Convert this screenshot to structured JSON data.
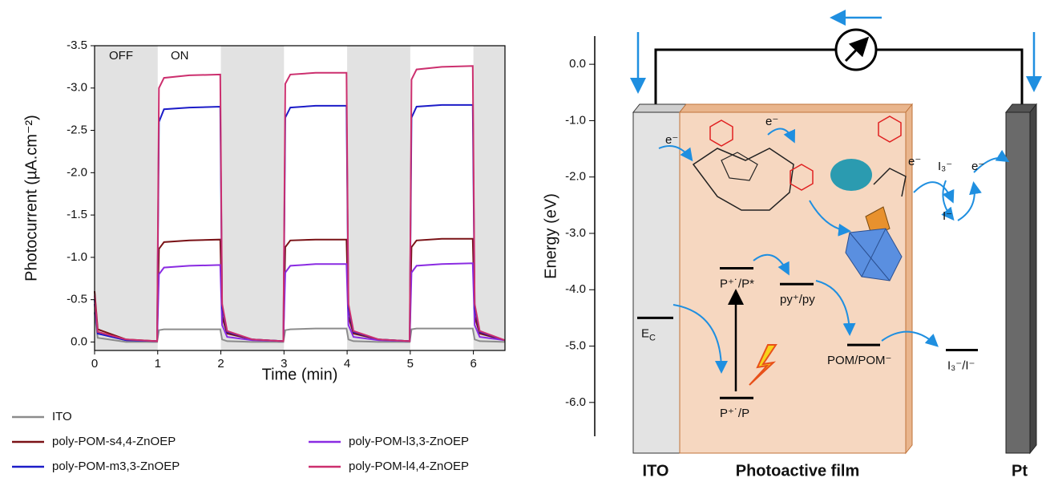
{
  "chart_data": [
    {
      "type": "line",
      "x_label": "Time (min)",
      "y_label": "Photocurrent (µA.cm⁻²)",
      "annotations": [
        "OFF",
        "ON"
      ],
      "shaded": [
        [
          0,
          1
        ],
        [
          2,
          3
        ],
        [
          4,
          5
        ],
        [
          6,
          6.5
        ]
      ],
      "xlim": [
        0,
        6.5
      ],
      "xticks": [
        0,
        1,
        2,
        3,
        4,
        5,
        6
      ],
      "ylim": [
        0.1,
        -3.5
      ],
      "yticks": [
        {
          "value": 0,
          "label": "0.0"
        },
        -0.5,
        {
          "value": -1,
          "label": "-1.0"
        },
        -1.5,
        {
          "value": -2,
          "label": "-2.0"
        },
        -2.5,
        {
          "value": -3,
          "label": "-3.0"
        },
        -3.5
      ],
      "legend": "bottom",
      "x": [
        0,
        0.05,
        0.5,
        0.99,
        1.02,
        1.1,
        1.5,
        1.99,
        2.02,
        2.1,
        2.5,
        2.99,
        3.02,
        3.1,
        3.5,
        3.99,
        4.02,
        4.1,
        4.5,
        4.99,
        5.02,
        5.1,
        5.5,
        5.99,
        6.02,
        6.1,
        6.5
      ],
      "series": [
        {
          "name": "ITO",
          "color": "#8c8c8c",
          "values": [
            -0.35,
            -0.05,
            0.0,
            0.0,
            -0.14,
            -0.15,
            -0.15,
            -0.15,
            -0.03,
            -0.01,
            0.0,
            0.0,
            -0.14,
            -0.15,
            -0.16,
            -0.16,
            -0.03,
            -0.01,
            0.0,
            0.0,
            -0.15,
            -0.16,
            -0.16,
            -0.16,
            -0.03,
            -0.01,
            0.0
          ]
        },
        {
          "name": "poly-POM-s4,4-ZnOEP",
          "color": "#7a1216",
          "values": [
            -0.6,
            -0.15,
            -0.03,
            -0.01,
            -1.1,
            -1.18,
            -1.2,
            -1.21,
            -0.3,
            -0.1,
            -0.03,
            -0.01,
            -1.12,
            -1.2,
            -1.21,
            -1.21,
            -0.3,
            -0.1,
            -0.03,
            -0.01,
            -1.12,
            -1.2,
            -1.22,
            -1.22,
            -0.3,
            -0.1,
            -0.02
          ]
        },
        {
          "name": "poly-POM-l3,3-ZnOEP",
          "color": "#8a2be2",
          "values": [
            -0.45,
            -0.1,
            -0.02,
            -0.01,
            -0.8,
            -0.88,
            -0.9,
            -0.91,
            -0.2,
            -0.06,
            -0.02,
            -0.01,
            -0.82,
            -0.9,
            -0.92,
            -0.92,
            -0.2,
            -0.06,
            -0.02,
            -0.01,
            -0.82,
            -0.9,
            -0.92,
            -0.93,
            -0.2,
            -0.06,
            -0.02
          ]
        },
        {
          "name": "poly-POM-m3,3-ZnOEP",
          "color": "#1c1cc8",
          "values": [
            -0.5,
            -0.1,
            -0.02,
            -0.01,
            -2.6,
            -2.75,
            -2.77,
            -2.78,
            -0.4,
            -0.12,
            -0.03,
            -0.01,
            -2.65,
            -2.77,
            -2.79,
            -2.79,
            -0.4,
            -0.12,
            -0.03,
            -0.01,
            -2.65,
            -2.78,
            -2.8,
            -2.8,
            -0.4,
            -0.12,
            -0.02
          ]
        },
        {
          "name": "poly-POM-l4,4-ZnOEP",
          "color": "#cc2f6e",
          "values": [
            -0.55,
            -0.12,
            -0.03,
            -0.01,
            -3.0,
            -3.12,
            -3.15,
            -3.16,
            -0.45,
            -0.13,
            -0.03,
            -0.01,
            -3.05,
            -3.16,
            -3.18,
            -3.18,
            -0.45,
            -0.13,
            -0.03,
            -0.01,
            -3.1,
            -3.22,
            -3.25,
            -3.26,
            -0.45,
            -0.13,
            -0.02
          ]
        }
      ]
    },
    {
      "type": "energy-diagram",
      "y_label": "Energy (eV)",
      "ylim": [
        -6.6,
        0.5
      ],
      "yticks": [
        {
          "value": 0,
          "label": "0.0"
        },
        {
          "value": -1,
          "label": "-1.0"
        },
        {
          "value": -2,
          "label": "-2.0"
        },
        {
          "value": -3,
          "label": "-3.0"
        },
        {
          "value": -4,
          "label": "-4.0"
        },
        {
          "value": -5,
          "label": "-5.0"
        },
        {
          "value": -6,
          "label": "-6.0"
        }
      ],
      "electrodes": [
        "ITO",
        "Photoactive film",
        "Pt"
      ],
      "levels": [
        {
          "label": "E",
          "sub": "C",
          "value": -4.5
        },
        {
          "label": "P⁺˙/P*",
          "value": -3.62
        },
        {
          "label": "py⁺/py",
          "value": -3.9
        },
        {
          "label": "POM/POM⁻",
          "value": -4.98
        },
        {
          "label": "I₃⁻/I⁻",
          "value": -5.07
        },
        {
          "label": "P⁺˙/P",
          "value": -5.92
        }
      ],
      "annotations": [
        "e⁻",
        "e⁻",
        "e⁻",
        "e⁻",
        "I₃⁻",
        "I⁻"
      ]
    }
  ]
}
